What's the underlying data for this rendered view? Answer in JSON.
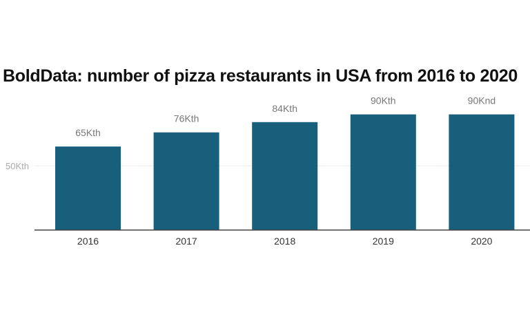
{
  "chart_data": {
    "type": "bar",
    "title": "BoldData: number of pizza restaurants in USA from 2016 to 2020",
    "categories": [
      "2016",
      "2017",
      "2018",
      "2019",
      "2020"
    ],
    "values": [
      65,
      76,
      84,
      90,
      90
    ],
    "data_labels": [
      "65Kth",
      "76Kth",
      "84Kth",
      "90Kth",
      "90Knd"
    ],
    "yticks": [
      {
        "value": 50,
        "label": "50Kth"
      }
    ],
    "ylim": [
      0,
      100
    ],
    "xlabel": "",
    "ylabel": "",
    "grid": true,
    "bar_color": "#175f7b"
  }
}
